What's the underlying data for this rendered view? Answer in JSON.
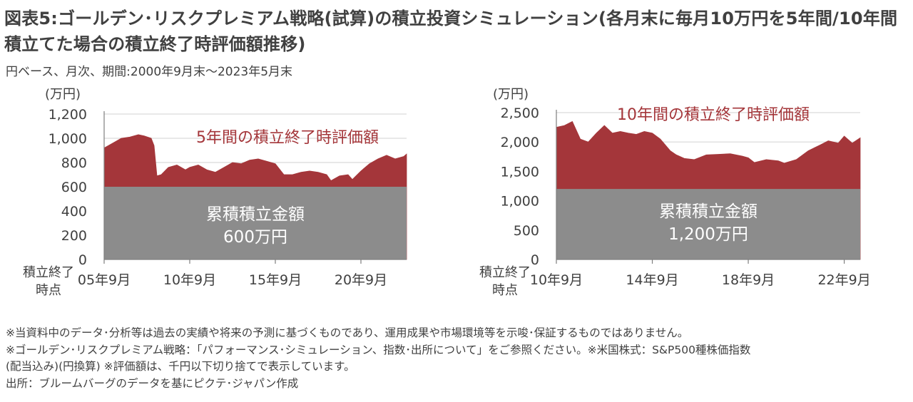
{
  "title": "図表5:ゴールデン･リスクプレミアム戦略(試算)の積立投資シミュレーション(各月末に毎月10万円を5年間/10年間積立てた場合の積立終了時評価額推移)",
  "subtitle": "円ベース、月次、期間:2000年9月末～2023年5月末",
  "colors": {
    "evaluation": "#A4363A",
    "accumulated": "#8C8C8C",
    "grid": "#D9D9D9",
    "text": "#404040"
  },
  "chart_data": [
    {
      "type": "area",
      "unit_label": "(万円)",
      "xlabel": "積立終了時点",
      "ylim": [
        0,
        1200
      ],
      "yticks": [
        0,
        200,
        400,
        600,
        800,
        1000,
        1200
      ],
      "ytick_labels": [
        "0",
        "200",
        "400",
        "600",
        "800",
        "1,000",
        "1,200"
      ],
      "xlim": [
        "2005-09",
        "2023-05"
      ],
      "xticks": [
        "2005-09",
        "2010-09",
        "2015-09",
        "2020-09"
      ],
      "xtick_labels": [
        "05年9月",
        "10年9月",
        "15年9月",
        "20年9月"
      ],
      "series": [
        {
          "name": "5年間の積立終了時評価額",
          "x": [
            "2005-09",
            "2006-03",
            "2006-09",
            "2007-03",
            "2007-09",
            "2008-01",
            "2008-06",
            "2008-08",
            "2008-10",
            "2009-01",
            "2009-06",
            "2009-12",
            "2010-06",
            "2010-09",
            "2011-03",
            "2011-09",
            "2012-03",
            "2012-09",
            "2013-03",
            "2013-09",
            "2014-03",
            "2014-09",
            "2015-03",
            "2015-09",
            "2016-03",
            "2016-09",
            "2017-03",
            "2017-09",
            "2018-03",
            "2018-09",
            "2018-12",
            "2019-06",
            "2019-12",
            "2020-03",
            "2020-09",
            "2021-03",
            "2021-09",
            "2022-03",
            "2022-09",
            "2023-03",
            "2023-05"
          ],
          "values": [
            920,
            960,
            1000,
            1010,
            1030,
            1020,
            1000,
            940,
            690,
            700,
            760,
            780,
            740,
            760,
            780,
            740,
            720,
            760,
            800,
            790,
            820,
            830,
            810,
            790,
            700,
            700,
            720,
            730,
            720,
            700,
            650,
            690,
            700,
            660,
            730,
            790,
            830,
            860,
            830,
            850,
            870
          ]
        },
        {
          "name": "累積積立金額",
          "label": "600万円",
          "constant": 600
        }
      ]
    },
    {
      "type": "area",
      "unit_label": "(万円)",
      "xlabel": "積立終了時点",
      "ylim": [
        0,
        2500
      ],
      "yticks": [
        0,
        500,
        1000,
        1500,
        2000,
        2500
      ],
      "ytick_labels": [
        "0",
        "500",
        "1,000",
        "1,500",
        "2,000",
        "2,500"
      ],
      "xlim": [
        "2010-09",
        "2023-05"
      ],
      "xticks": [
        "2010-09",
        "2014-09",
        "2018-09",
        "2022-09"
      ],
      "xtick_labels": [
        "10年9月",
        "14年9月",
        "18年9月",
        "22年9月"
      ],
      "series": [
        {
          "name": "10年間の積立終了時評価額",
          "x": [
            "2010-09",
            "2011-01",
            "2011-05",
            "2011-09",
            "2012-01",
            "2012-05",
            "2012-09",
            "2013-01",
            "2013-05",
            "2013-09",
            "2014-01",
            "2014-05",
            "2014-09",
            "2015-01",
            "2015-06",
            "2015-09",
            "2016-01",
            "2016-06",
            "2016-12",
            "2017-06",
            "2017-12",
            "2018-06",
            "2018-09",
            "2018-12",
            "2019-06",
            "2019-12",
            "2020-03",
            "2020-09",
            "2021-03",
            "2021-09",
            "2022-01",
            "2022-06",
            "2022-09",
            "2023-01",
            "2023-05"
          ],
          "values": [
            2250,
            2280,
            2350,
            2050,
            2000,
            2150,
            2280,
            2150,
            2180,
            2150,
            2130,
            2180,
            2150,
            2050,
            1850,
            1780,
            1720,
            1700,
            1780,
            1790,
            1800,
            1760,
            1730,
            1650,
            1700,
            1680,
            1640,
            1700,
            1850,
            1950,
            2020,
            1980,
            2100,
            1980,
            2070
          ]
        },
        {
          "name": "累積積立金額",
          "label": "1,200万円",
          "constant": 1200
        }
      ]
    }
  ],
  "notes": [
    "※当資料中のデータ･分析等は過去の実績や将来の予測に基づくものであり、運用成果や市場環境等を示唆･保証するものではありません。",
    "※ゴールデン･リスクプレミアム戦略：「パフォーマンス･シミュレーション、指数･出所について」をご参照ください。※米国株式：S&P500種株価指数",
    "(配当込み)(円換算) ※評価額は、千円以下切り捨てで表示しています。",
    "出所：ブルームバーグのデータを基にピクテ･ジャパン作成"
  ]
}
